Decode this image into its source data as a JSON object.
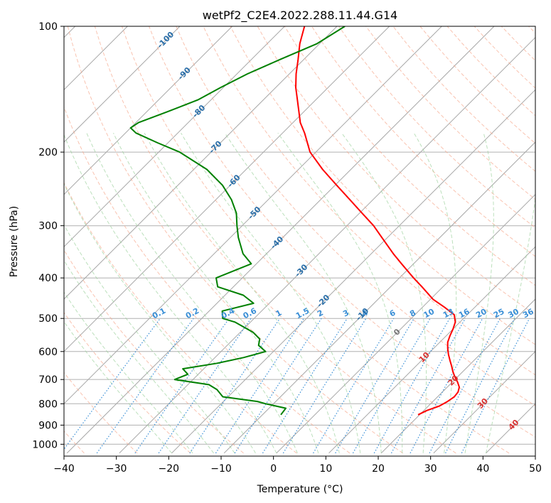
{
  "chart_data": {
    "type": "skew-t log-p sounding",
    "title": "wetPf2_C2E4.2022.288.11.44.G14",
    "xlabel": "Temperature (°C)",
    "ylabel": "Pressure (hPa)",
    "xlim": [
      -40,
      50
    ],
    "ylim_hpa": [
      1050,
      100
    ],
    "x_ticks": [
      -40,
      -30,
      -20,
      -10,
      0,
      10,
      20,
      30,
      40,
      50
    ],
    "x_tick_labels": [
      "−40",
      "−30",
      "−20",
      "−10",
      "0",
      "10",
      "20",
      "30",
      "40",
      "50"
    ],
    "y_ticks": [
      1000,
      900,
      800,
      700,
      600,
      500,
      400,
      300,
      200,
      100
    ],
    "y_tick_labels": [
      "1000",
      "900",
      "800",
      "700",
      "600",
      "500",
      "400",
      "300",
      "200",
      "100"
    ],
    "isotherm_labels": {
      "values": [
        -100,
        -90,
        -80,
        -70,
        -60,
        -50,
        -40,
        -30,
        -20,
        -10,
        0,
        10,
        20,
        30,
        40
      ],
      "texts": [
        "-100",
        "-90",
        "-80",
        "-70",
        "-60",
        "-50",
        "-40",
        "-30",
        "-20",
        "-10",
        "0",
        "10",
        "20",
        "30",
        "40"
      ]
    },
    "mixing_ratio_labels": {
      "values": [
        0.1,
        0.2,
        0.4,
        0.6,
        1,
        1.5,
        2,
        3,
        4,
        6,
        8,
        10,
        13,
        16,
        20,
        25,
        30,
        36
      ],
      "texts": [
        "0.1",
        "0.2",
        "0.4",
        "0.6",
        "1",
        "1.5",
        "2",
        "3",
        "4",
        "6",
        "8",
        "10",
        "13",
        "16",
        "20",
        "25",
        "30",
        "36"
      ],
      "units": "g/kg"
    },
    "series": [
      {
        "name": "Temperature",
        "color": "#ff0000",
        "pressure_hpa": [
          850,
          830,
          810,
          790,
          770,
          750,
          730,
          710,
          690,
          670,
          650,
          630,
          610,
          590,
          570,
          550,
          530,
          510,
          490,
          470,
          450,
          420,
          400,
          370,
          350,
          320,
          300,
          280,
          260,
          240,
          220,
          200,
          180,
          170,
          150,
          140,
          130,
          120,
          110,
          100
        ],
        "temp_c": [
          19.7,
          20.6,
          22.1,
          22.8,
          23.2,
          23.0,
          22.3,
          21.0,
          19.5,
          18.1,
          16.8,
          15.4,
          14.0,
          12.7,
          11.5,
          10.7,
          10.0,
          9.1,
          7.5,
          4.2,
          0.5,
          -4.0,
          -7.3,
          -12.3,
          -15.8,
          -21.1,
          -24.9,
          -29.5,
          -34.4,
          -39.7,
          -45.4,
          -51.1,
          -55.8,
          -58.6,
          -63.5,
          -66.2,
          -68.7,
          -71.1,
          -73.8,
          -76.2
        ]
      },
      {
        "name": "Dewpoint",
        "color": "#008000",
        "pressure_hpa": [
          850,
          840,
          820,
          800,
          790,
          770,
          740,
          720,
          700,
          680,
          660,
          640,
          620,
          600,
          580,
          560,
          540,
          510,
          500,
          480,
          460,
          440,
          420,
          400,
          370,
          350,
          320,
          300,
          280,
          260,
          240,
          220,
          200,
          190,
          180,
          175,
          170,
          160,
          150,
          140,
          130,
          120,
          110,
          100
        ],
        "temp_c": [
          -6.5,
          -6.6,
          -6.8,
          -11.5,
          -13.5,
          -21.0,
          -23.5,
          -26.0,
          -33.5,
          -32.0,
          -34.0,
          -28.5,
          -24.5,
          -21.5,
          -24.0,
          -25.0,
          -27.5,
          -33.0,
          -36.0,
          -37.5,
          -33.0,
          -36.5,
          -43.0,
          -45.0,
          -41.0,
          -44.5,
          -48.5,
          -51.0,
          -53.5,
          -57.0,
          -61.5,
          -67.5,
          -76.0,
          -82.0,
          -88.0,
          -90.0,
          -89.5,
          -86.0,
          -82.5,
          -80.5,
          -78.0,
          -74.5,
          -70.5,
          -68.5
        ]
      }
    ]
  }
}
